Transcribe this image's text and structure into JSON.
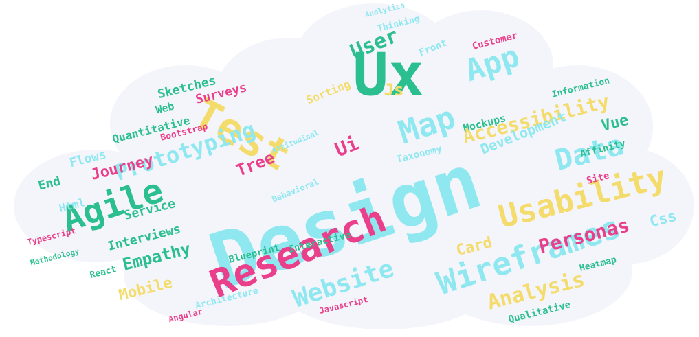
{
  "palette": {
    "cloud_fill": "#f4f4fb",
    "cyan": "#8fe8f0",
    "green": "#2bbf8f",
    "pink": "#ea3f8a",
    "yellow": "#f4dc6c"
  },
  "words": [
    {
      "text": "Design",
      "color": "cyan"
    },
    {
      "text": "Ux",
      "color": "green"
    },
    {
      "text": "Test",
      "color": "yellow"
    },
    {
      "text": "Research",
      "color": "pink"
    },
    {
      "text": "Wireframes",
      "color": "cyan"
    },
    {
      "text": "Agile",
      "color": "green"
    },
    {
      "text": "Usability",
      "color": "yellow"
    },
    {
      "text": "Map",
      "color": "cyan"
    },
    {
      "text": "App",
      "color": "cyan"
    },
    {
      "text": "Data",
      "color": "cyan"
    },
    {
      "text": "Website",
      "color": "cyan"
    },
    {
      "text": "Prototyping",
      "color": "cyan"
    },
    {
      "text": "Accessibility",
      "color": "yellow"
    },
    {
      "text": "Analysis",
      "color": "yellow"
    },
    {
      "text": "User",
      "color": "green"
    },
    {
      "text": "Personas",
      "color": "pink"
    },
    {
      "text": "Empathy",
      "color": "green"
    },
    {
      "text": "Journey",
      "color": "pink"
    },
    {
      "text": "Development",
      "color": "cyan"
    },
    {
      "text": "Js",
      "color": "yellow"
    },
    {
      "text": "Ui",
      "color": "pink"
    },
    {
      "text": "Tree",
      "color": "pink"
    },
    {
      "text": "Mobile",
      "color": "yellow"
    },
    {
      "text": "Interviews",
      "color": "green"
    },
    {
      "text": "Card",
      "color": "yellow"
    },
    {
      "text": "Css",
      "color": "cyan"
    },
    {
      "text": "Vue",
      "color": "green"
    },
    {
      "text": "Surveys",
      "color": "pink"
    },
    {
      "text": "Sketches",
      "color": "green"
    },
    {
      "text": "Quantitative",
      "color": "green"
    },
    {
      "text": "Flows",
      "color": "cyan"
    },
    {
      "text": "Service",
      "color": "green"
    },
    {
      "text": "End",
      "color": "green"
    },
    {
      "text": "Html",
      "color": "cyan"
    },
    {
      "text": "Bootstrap",
      "color": "pink"
    },
    {
      "text": "Web",
      "color": "green"
    },
    {
      "text": "Mockups",
      "color": "green"
    },
    {
      "text": "Affinity",
      "color": "green"
    },
    {
      "text": "Sorting",
      "color": "yellow"
    },
    {
      "text": "Blueprint",
      "color": "green"
    },
    {
      "text": "Interactive",
      "color": "green"
    },
    {
      "text": "Front",
      "color": "cyan"
    },
    {
      "text": "Customer",
      "color": "pink"
    },
    {
      "text": "Thinking",
      "color": "cyan"
    },
    {
      "text": "Taxonomy",
      "color": "cyan"
    },
    {
      "text": "Information",
      "color": "green"
    },
    {
      "text": "Site",
      "color": "pink"
    },
    {
      "text": "Qualitative",
      "color": "green"
    },
    {
      "text": "Heatmap",
      "color": "green"
    },
    {
      "text": "Javascript",
      "color": "pink"
    },
    {
      "text": "Architecture",
      "color": "cyan"
    },
    {
      "text": "Angular",
      "color": "pink"
    },
    {
      "text": "React",
      "color": "green"
    },
    {
      "text": "Methodology",
      "color": "green"
    },
    {
      "text": "Behavioral",
      "color": "cyan"
    },
    {
      "text": "Typescript",
      "color": "pink"
    },
    {
      "text": "Attitudinal",
      "color": "cyan"
    },
    {
      "text": "Analytics",
      "color": "cyan"
    }
  ]
}
